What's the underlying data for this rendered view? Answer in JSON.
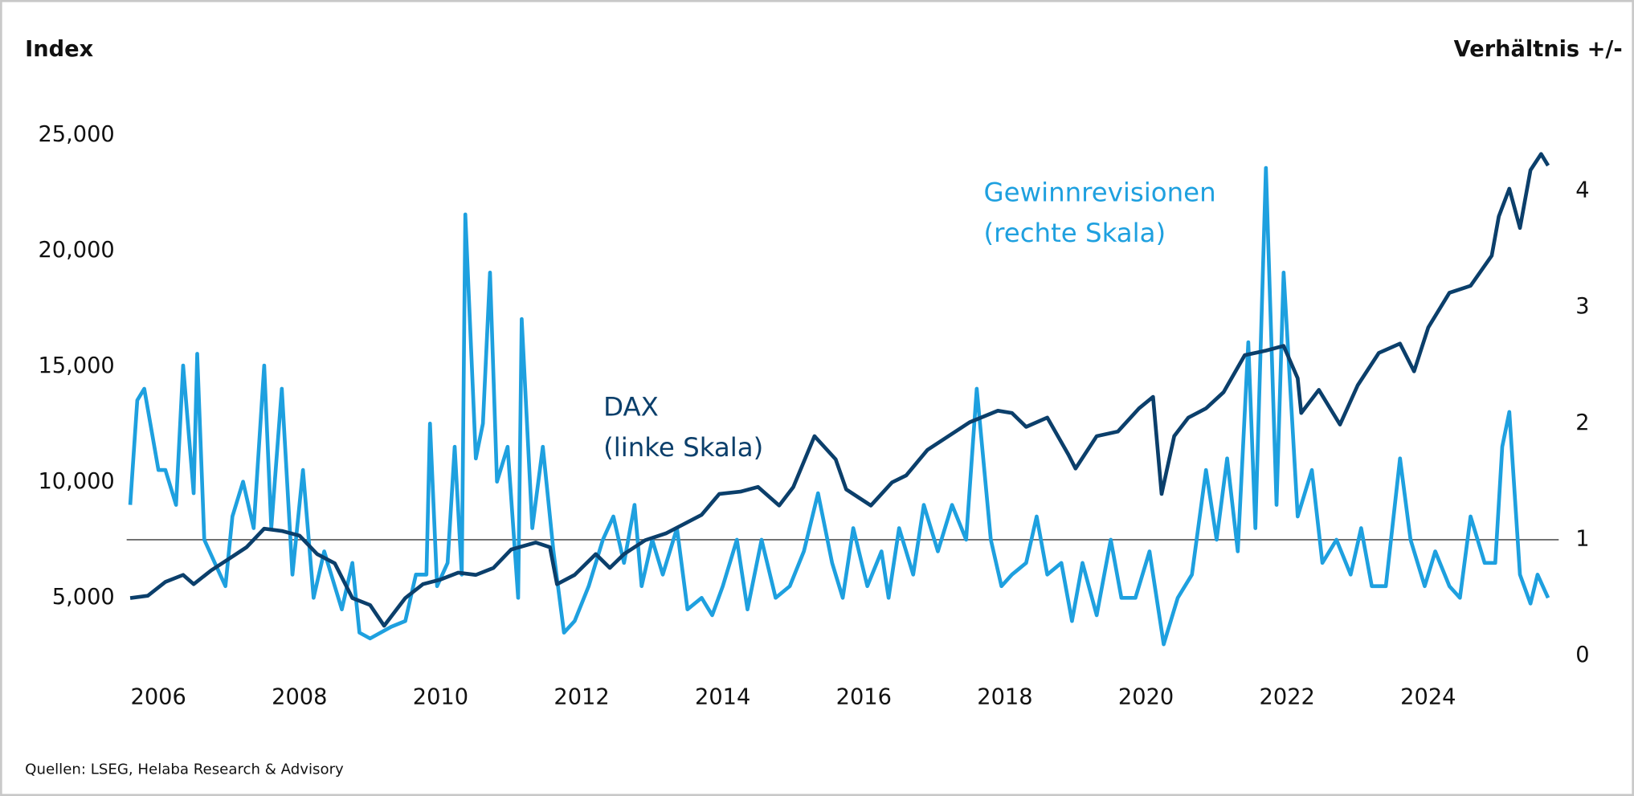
{
  "chart_data": {
    "type": "line",
    "y_label": "Index",
    "y2_label": "Verhältnis +/-",
    "source": "Quellen: LSEG, Helaba Research & Advisory",
    "annotations": [
      [
        "DAX",
        "(linke Skala)"
      ],
      [
        "Gewinnrevisionen",
        "(rechte Skala)"
      ]
    ],
    "xlim": [
      2005.55,
      2025.85
    ],
    "xticks": [
      2006,
      2008,
      2010,
      2012,
      2014,
      2016,
      2018,
      2020,
      2022,
      2024
    ],
    "ylim": [
      2500,
      25000
    ],
    "yticks": [
      {
        "value": 5000,
        "label": "5,000"
      },
      {
        "value": 10000,
        "label": "10,000"
      },
      {
        "value": 15000,
        "label": "15,000"
      },
      {
        "value": 20000,
        "label": "20,000"
      },
      {
        "value": 25000,
        "label": "25,000"
      }
    ],
    "y2lim": [
      0,
      4.48
    ],
    "y2ticks": [
      0,
      1,
      2,
      3,
      4
    ],
    "reference_line": {
      "axis": "y2",
      "value": 1
    },
    "series": [
      {
        "name": "DAX",
        "color": "#0b3f6b",
        "x": [
          2005.6,
          2005.85,
          2006.1,
          2006.35,
          2006.5,
          2006.75,
          2007.0,
          2007.25,
          2007.5,
          2007.75,
          2008.0,
          2008.25,
          2008.5,
          2008.75,
          2009.0,
          2009.2,
          2009.5,
          2009.75,
          2010.0,
          2010.25,
          2010.5,
          2010.75,
          2011.0,
          2011.35,
          2011.55,
          2011.65,
          2011.9,
          2012.2,
          2012.4,
          2012.6,
          2012.9,
          2013.2,
          2013.45,
          2013.7,
          2013.95,
          2014.25,
          2014.5,
          2014.8,
          2015.0,
          2015.3,
          2015.6,
          2015.75,
          2016.1,
          2016.4,
          2016.6,
          2016.9,
          2017.2,
          2017.5,
          2017.9,
          2018.1,
          2018.3,
          2018.6,
          2018.9,
          2019.0,
          2019.3,
          2019.6,
          2019.9,
          2020.1,
          2020.22,
          2020.4,
          2020.6,
          2020.85,
          2021.1,
          2021.4,
          2021.7,
          2021.95,
          2022.15,
          2022.2,
          2022.45,
          2022.75,
          2023.0,
          2023.3,
          2023.6,
          2023.8,
          2024.0,
          2024.3,
          2024.6,
          2024.9,
          2025.0,
          2025.15,
          2025.3,
          2025.45,
          2025.6,
          2025.7
        ],
        "values": [
          5000,
          5100,
          5700,
          6000,
          5600,
          6200,
          6700,
          7200,
          8000,
          7900,
          7700,
          6900,
          6500,
          5000,
          4700,
          3800,
          5000,
          5600,
          5800,
          6100,
          6000,
          6300,
          7100,
          7400,
          7200,
          5600,
          6000,
          6900,
          6300,
          6900,
          7500,
          7800,
          8200,
          8600,
          9500,
          9600,
          9800,
          9000,
          9800,
          12000,
          11000,
          9700,
          9000,
          10000,
          10300,
          11400,
          12000,
          12600,
          13100,
          13000,
          12400,
          12800,
          11200,
          10600,
          12000,
          12200,
          13200,
          13700,
          9500,
          12000,
          12800,
          13200,
          13900,
          15500,
          15700,
          15900,
          14500,
          13000,
          14000,
          12500,
          14200,
          15600,
          16000,
          14800,
          16700,
          18200,
          18500,
          19800,
          21500,
          22700,
          21000,
          23500,
          24200,
          23700
        ]
      },
      {
        "name": "Gewinnrevisionen",
        "color": "#1ea0df",
        "axis": "y2",
        "x": [
          2005.6,
          2005.7,
          2005.8,
          2006.0,
          2006.1,
          2006.25,
          2006.35,
          2006.5,
          2006.55,
          2006.65,
          2006.8,
          2006.95,
          2007.05,
          2007.2,
          2007.35,
          2007.5,
          2007.6,
          2007.75,
          2007.9,
          2008.05,
          2008.2,
          2008.35,
          2008.5,
          2008.6,
          2008.75,
          2008.85,
          2009.0,
          2009.3,
          2009.5,
          2009.65,
          2009.8,
          2009.85,
          2009.95,
          2010.1,
          2010.2,
          2010.3,
          2010.35,
          2010.5,
          2010.6,
          2010.7,
          2010.8,
          2010.95,
          2011.1,
          2011.15,
          2011.3,
          2011.45,
          2011.6,
          2011.75,
          2011.9,
          2012.1,
          2012.3,
          2012.45,
          2012.6,
          2012.75,
          2012.85,
          2013.0,
          2013.15,
          2013.35,
          2013.5,
          2013.7,
          2013.85,
          2014.0,
          2014.2,
          2014.35,
          2014.55,
          2014.75,
          2014.95,
          2015.15,
          2015.35,
          2015.55,
          2015.7,
          2015.85,
          2016.05,
          2016.25,
          2016.35,
          2016.5,
          2016.7,
          2016.85,
          2017.05,
          2017.25,
          2017.45,
          2017.6,
          2017.8,
          2017.95,
          2018.1,
          2018.3,
          2018.45,
          2018.6,
          2018.8,
          2018.95,
          2019.1,
          2019.3,
          2019.5,
          2019.65,
          2019.85,
          2020.05,
          2020.25,
          2020.45,
          2020.65,
          2020.85,
          2021.0,
          2021.15,
          2021.3,
          2021.45,
          2021.55,
          2021.7,
          2021.85,
          2021.95,
          2022.15,
          2022.35,
          2022.5,
          2022.7,
          2022.9,
          2023.05,
          2023.2,
          2023.4,
          2023.6,
          2023.75,
          2023.95,
          2024.1,
          2024.3,
          2024.45,
          2024.6,
          2024.8,
          2024.95,
          2025.05,
          2025.15,
          2025.3,
          2025.45,
          2025.55,
          2025.7
        ],
        "values": [
          1.3,
          2.2,
          2.3,
          1.6,
          1.6,
          1.3,
          2.5,
          1.4,
          2.6,
          1.0,
          0.8,
          0.6,
          1.2,
          1.5,
          1.1,
          2.5,
          1.1,
          2.3,
          0.7,
          1.6,
          0.5,
          0.9,
          0.6,
          0.4,
          0.8,
          0.2,
          0.15,
          0.25,
          0.3,
          0.7,
          0.7,
          2.0,
          0.6,
          0.8,
          1.8,
          0.7,
          3.8,
          1.7,
          2.0,
          3.3,
          1.5,
          1.8,
          0.5,
          2.9,
          1.1,
          1.8,
          0.9,
          0.2,
          0.3,
          0.6,
          1.0,
          1.2,
          0.8,
          1.3,
          0.6,
          1.0,
          0.7,
          1.1,
          0.4,
          0.5,
          0.35,
          0.6,
          1.0,
          0.4,
          1.0,
          0.5,
          0.6,
          0.9,
          1.4,
          0.8,
          0.5,
          1.1,
          0.6,
          0.9,
          0.5,
          1.1,
          0.7,
          1.3,
          0.9,
          1.3,
          1.0,
          2.3,
          1.0,
          0.6,
          0.7,
          0.8,
          1.2,
          0.7,
          0.8,
          0.3,
          0.8,
          0.35,
          1.0,
          0.5,
          0.5,
          0.9,
          0.1,
          0.5,
          0.7,
          1.6,
          1.0,
          1.7,
          0.9,
          2.7,
          1.1,
          4.2,
          1.3,
          3.3,
          1.2,
          1.6,
          0.8,
          1.0,
          0.7,
          1.1,
          0.6,
          0.6,
          1.7,
          1.0,
          0.6,
          0.9,
          0.6,
          0.5,
          1.2,
          0.8,
          0.8,
          1.8,
          2.1,
          0.7,
          0.45,
          0.7,
          0.5
        ]
      }
    ]
  }
}
